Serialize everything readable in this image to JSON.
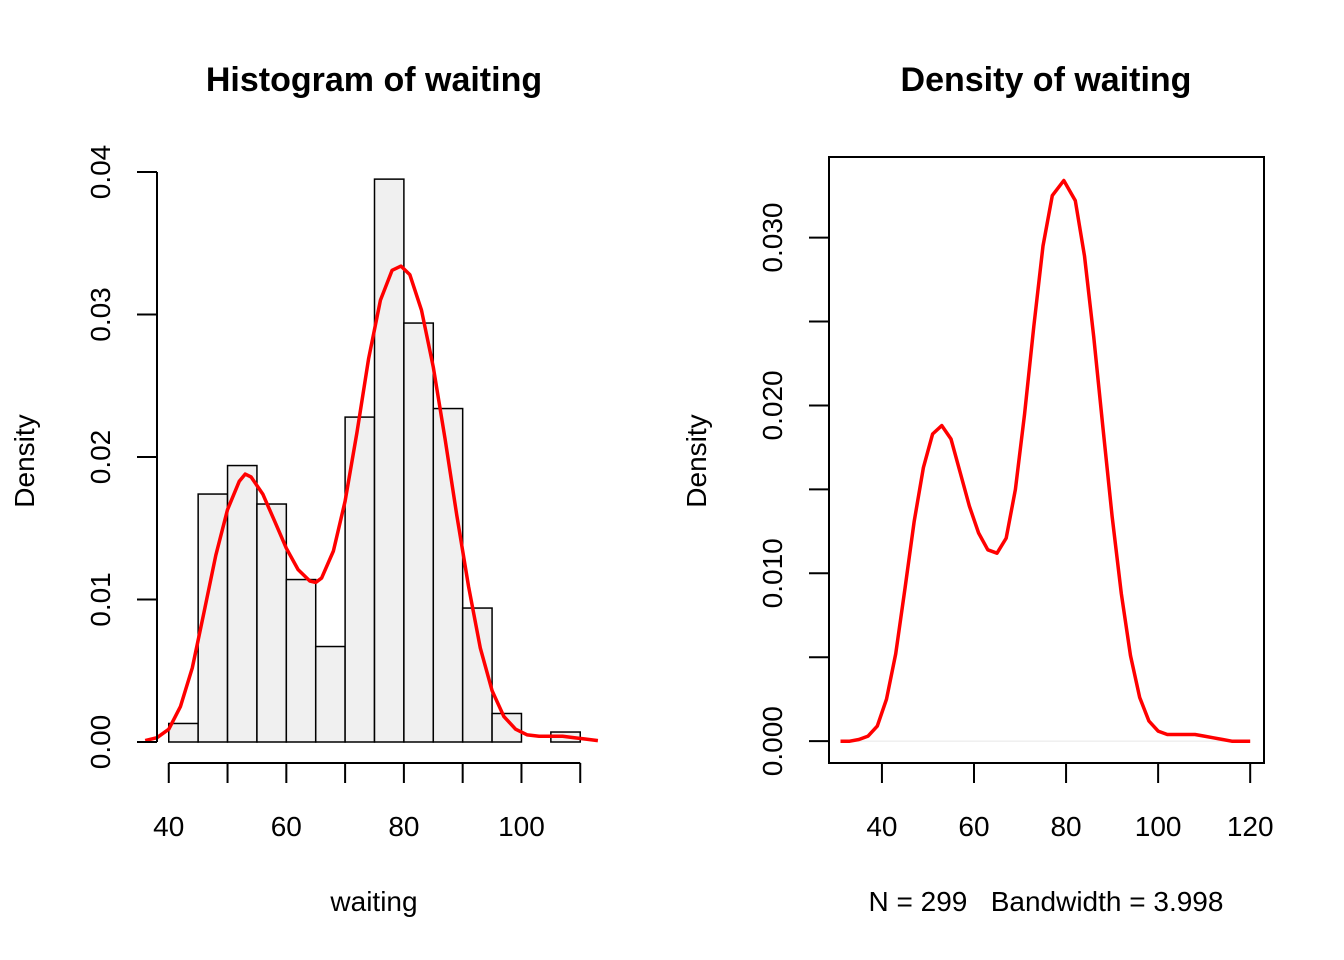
{
  "chart_data": [
    {
      "type": "bar",
      "title": "Histogram of waiting",
      "xlabel": "waiting",
      "ylabel": "Density",
      "xticks": [
        40,
        60,
        80,
        100
      ],
      "yticks": [
        0.0,
        0.01,
        0.02,
        0.03,
        0.04
      ],
      "ytick_labels": [
        "0.00",
        "0.01",
        "0.02",
        "0.03",
        "0.04"
      ],
      "xlim": [
        38,
        112
      ],
      "ylim": [
        0,
        0.04
      ],
      "bins": [
        {
          "from": 40,
          "to": 45,
          "density": 0.0013
        },
        {
          "from": 45,
          "to": 50,
          "density": 0.0174
        },
        {
          "from": 50,
          "to": 55,
          "density": 0.0194
        },
        {
          "from": 55,
          "to": 60,
          "density": 0.0167
        },
        {
          "from": 60,
          "to": 65,
          "density": 0.0114
        },
        {
          "from": 65,
          "to": 70,
          "density": 0.0067
        },
        {
          "from": 70,
          "to": 75,
          "density": 0.0228
        },
        {
          "from": 75,
          "to": 80,
          "density": 0.0395
        },
        {
          "from": 80,
          "to": 85,
          "density": 0.0294
        },
        {
          "from": 85,
          "to": 90,
          "density": 0.0234
        },
        {
          "from": 90,
          "to": 95,
          "density": 0.0094
        },
        {
          "from": 95,
          "to": 100,
          "density": 0.002
        },
        {
          "from": 100,
          "to": 105,
          "density": 0.0
        },
        {
          "from": 105,
          "to": 110,
          "density": 0.0007
        }
      ],
      "density_curve": {
        "color": "#ff0000",
        "x": [
          36,
          38,
          40,
          42,
          44,
          46,
          48,
          50,
          52,
          53,
          54,
          56,
          58,
          60,
          62,
          64,
          65,
          66,
          68,
          70,
          72,
          74,
          76,
          78,
          79.5,
          81,
          83,
          85,
          87,
          89,
          91,
          93,
          95,
          97,
          99,
          101,
          103,
          105,
          107,
          109,
          111,
          113
        ],
        "y": [
          0.0001,
          0.0003,
          0.0009,
          0.0025,
          0.0052,
          0.0091,
          0.0131,
          0.0163,
          0.0183,
          0.0188,
          0.0186,
          0.0174,
          0.0155,
          0.0136,
          0.0121,
          0.0113,
          0.0112,
          0.0115,
          0.0134,
          0.0169,
          0.0217,
          0.0269,
          0.031,
          0.0331,
          0.0334,
          0.0328,
          0.0303,
          0.0263,
          0.0213,
          0.0159,
          0.0109,
          0.0066,
          0.0036,
          0.0018,
          0.0009,
          0.0005,
          0.0004,
          0.0004,
          0.0004,
          0.0003,
          0.0002,
          0.0001
        ]
      }
    },
    {
      "type": "line",
      "title": "Density of waiting",
      "xlabel": "N = 299   Bandwidth = 3.998",
      "ylabel": "Density",
      "xticks": [
        40,
        60,
        80,
        100,
        120
      ],
      "yticks": [
        0.0,
        0.005,
        0.01,
        0.015,
        0.02,
        0.025,
        0.03
      ],
      "ytick_labels": [
        "0.000",
        "",
        "0.010",
        "",
        "0.020",
        "",
        "0.030"
      ],
      "xlim": [
        28.5,
        123
      ],
      "ylim": [
        -0.0013,
        0.0348
      ],
      "series": [
        {
          "color": "#ff0000",
          "x": [
            31,
            33,
            35,
            37,
            39,
            41,
            43,
            45,
            47,
            49,
            51,
            53,
            55,
            57,
            59,
            61,
            63,
            65,
            67,
            69,
            71,
            73,
            75,
            77,
            79.5,
            82,
            84,
            86,
            88,
            90,
            92,
            94,
            96,
            98,
            100,
            102,
            104,
            106,
            108,
            110,
            112,
            114,
            116,
            118,
            120
          ],
          "y": [
            0.0,
            0.0,
            0.0001,
            0.0003,
            0.0009,
            0.0025,
            0.0052,
            0.0091,
            0.0131,
            0.0163,
            0.0183,
            0.0188,
            0.018,
            0.016,
            0.014,
            0.0124,
            0.0114,
            0.0112,
            0.0121,
            0.015,
            0.0195,
            0.0247,
            0.0295,
            0.0325,
            0.0334,
            0.0322,
            0.0289,
            0.0241,
            0.0187,
            0.0134,
            0.0088,
            0.0051,
            0.0026,
            0.0012,
            0.0006,
            0.0004,
            0.0004,
            0.0004,
            0.0004,
            0.0003,
            0.0002,
            0.0001,
            0.0,
            0.0,
            0.0
          ]
        }
      ]
    }
  ]
}
